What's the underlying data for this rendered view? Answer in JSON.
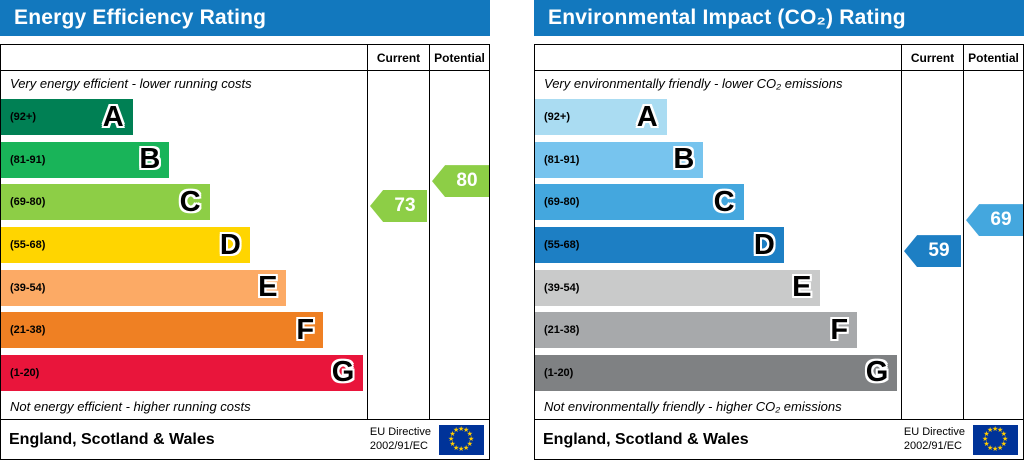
{
  "colors": {
    "header_bg": "#1278be",
    "eu_flag_bg": "#003399",
    "eu_star_color": "#ffcc00"
  },
  "icons": {
    "eu_star": "★"
  },
  "charts": [
    {
      "title": "Energy Efficiency Rating",
      "columns": {
        "current": "Current",
        "potential": "Potential"
      },
      "top_note": "Very energy efficient - lower running costs",
      "bottom_note": "Not energy efficient - higher running costs",
      "bands": [
        {
          "label": "(92+)",
          "letter": "A",
          "min": 92,
          "max": 100,
          "color": "#008054",
          "width_pct": 36
        },
        {
          "label": "(81-91)",
          "letter": "B",
          "min": 81,
          "max": 91,
          "color": "#19b459",
          "width_pct": 46
        },
        {
          "label": "(69-80)",
          "letter": "C",
          "min": 69,
          "max": 80,
          "color": "#8dce46",
          "width_pct": 57
        },
        {
          "label": "(55-68)",
          "letter": "D",
          "min": 55,
          "max": 68,
          "color": "#ffd500",
          "width_pct": 68
        },
        {
          "label": "(39-54)",
          "letter": "E",
          "min": 39,
          "max": 54,
          "color": "#fcaa65",
          "width_pct": 78
        },
        {
          "label": "(21-38)",
          "letter": "F",
          "min": 21,
          "max": 38,
          "color": "#ef8023",
          "width_pct": 88
        },
        {
          "label": "(1-20)",
          "letter": "G",
          "min": 1,
          "max": 20,
          "color": "#e9153b",
          "width_pct": 99
        }
      ],
      "current": {
        "value": 73,
        "color": "#8dce46"
      },
      "potential": {
        "value": 80,
        "color": "#8dce46"
      },
      "footer_left": "England, Scotland & Wales",
      "eu_directive": [
        "EU Directive",
        "2002/91/EC"
      ]
    },
    {
      "title": "Environmental Impact (CO₂) Rating",
      "columns": {
        "current": "Current",
        "potential": "Potential"
      },
      "top_note": "Very environmentally friendly - lower CO₂ emissions",
      "bottom_note": "Not environmentally friendly - higher CO₂ emissions",
      "bands": [
        {
          "label": "(92+)",
          "letter": "A",
          "min": 92,
          "max": 100,
          "color": "#aadcf2",
          "width_pct": 36
        },
        {
          "label": "(81-91)",
          "letter": "B",
          "min": 81,
          "max": 91,
          "color": "#77c4ee",
          "width_pct": 46
        },
        {
          "label": "(69-80)",
          "letter": "C",
          "min": 69,
          "max": 80,
          "color": "#44a7de",
          "width_pct": 57
        },
        {
          "label": "(55-68)",
          "letter": "D",
          "min": 55,
          "max": 68,
          "color": "#1d7fc4",
          "width_pct": 68
        },
        {
          "label": "(39-54)",
          "letter": "E",
          "min": 39,
          "max": 54,
          "color": "#c9caca",
          "width_pct": 78
        },
        {
          "label": "(21-38)",
          "letter": "F",
          "min": 21,
          "max": 38,
          "color": "#a7a9ab",
          "width_pct": 88
        },
        {
          "label": "(1-20)",
          "letter": "G",
          "min": 1,
          "max": 20,
          "color": "#7f8183",
          "width_pct": 99
        }
      ],
      "current": {
        "value": 59,
        "color": "#1d7fc4"
      },
      "potential": {
        "value": 69,
        "color": "#44a7de"
      },
      "footer_left": "England, Scotland & Wales",
      "eu_directive": [
        "EU Directive",
        "2002/91/EC"
      ]
    }
  ],
  "chart_data": [
    {
      "type": "bar",
      "title": "Energy Efficiency Rating",
      "categories": [
        "A (92+)",
        "B (81-91)",
        "C (69-80)",
        "D (55-68)",
        "E (39-54)",
        "F (21-38)",
        "G (1-20)"
      ],
      "series": [
        {
          "name": "Current",
          "values": [
            73
          ],
          "band": "C"
        },
        {
          "name": "Potential",
          "values": [
            80
          ],
          "band": "C"
        }
      ],
      "scale": [
        1,
        100
      ],
      "notes": [
        "Very energy efficient - lower running costs",
        "Not energy efficient - higher running costs"
      ],
      "footer": [
        "England, Scotland & Wales",
        "EU Directive 2002/91/EC"
      ]
    },
    {
      "type": "bar",
      "title": "Environmental Impact (CO₂) Rating",
      "categories": [
        "A (92+)",
        "B (81-91)",
        "C (69-80)",
        "D (55-68)",
        "E (39-54)",
        "F (21-38)",
        "G (1-20)"
      ],
      "series": [
        {
          "name": "Current",
          "values": [
            59
          ],
          "band": "D"
        },
        {
          "name": "Potential",
          "values": [
            69
          ],
          "band": "C"
        }
      ],
      "scale": [
        1,
        100
      ],
      "notes": [
        "Very environmentally friendly - lower CO₂ emissions",
        "Not environmentally friendly - higher CO₂ emissions"
      ],
      "footer": [
        "England, Scotland & Wales",
        "EU Directive 2002/91/EC"
      ]
    }
  ]
}
